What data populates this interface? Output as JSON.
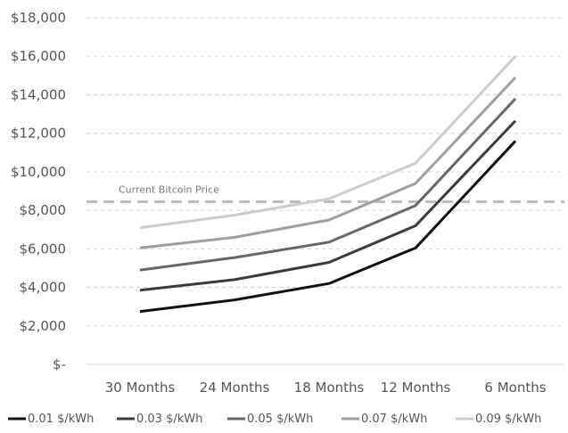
{
  "chart_data": {
    "type": "line",
    "categories": [
      "30 Months",
      "24 Months",
      "18 Months",
      "12 Months",
      "6 Months"
    ],
    "y_tick_labels": [
      "$-",
      "$2,000",
      "$4,000",
      "$6,000",
      "$8,000",
      "$10,000",
      "$12,000",
      "$14,000",
      "$16,000",
      "$18,000"
    ],
    "ylim": [
      0,
      18000
    ],
    "grid": true,
    "legend_position": "bottom",
    "series": [
      {
        "name": "0.01 $/kWh",
        "values": [
          2750,
          3350,
          4200,
          6050,
          11600
        ],
        "color": "#111111"
      },
      {
        "name": "0.03 $/kWh",
        "values": [
          3850,
          4400,
          5300,
          7200,
          12650
        ],
        "color": "#3a3a3a"
      },
      {
        "name": "0.05 $/kWh",
        "values": [
          4900,
          5550,
          6350,
          8250,
          13800
        ],
        "color": "#666666"
      },
      {
        "name": "0.07 $/kWh",
        "values": [
          6050,
          6600,
          7500,
          9400,
          14900
        ],
        "color": "#9e9e9e"
      },
      {
        "name": "0.09 $/kWh",
        "values": [
          7100,
          7750,
          8600,
          10450,
          16000
        ],
        "color": "#cccccc"
      }
    ],
    "reference_line": {
      "label": "Current Bitcoin Price",
      "value": 8450,
      "color": "#bbbbbb"
    }
  }
}
